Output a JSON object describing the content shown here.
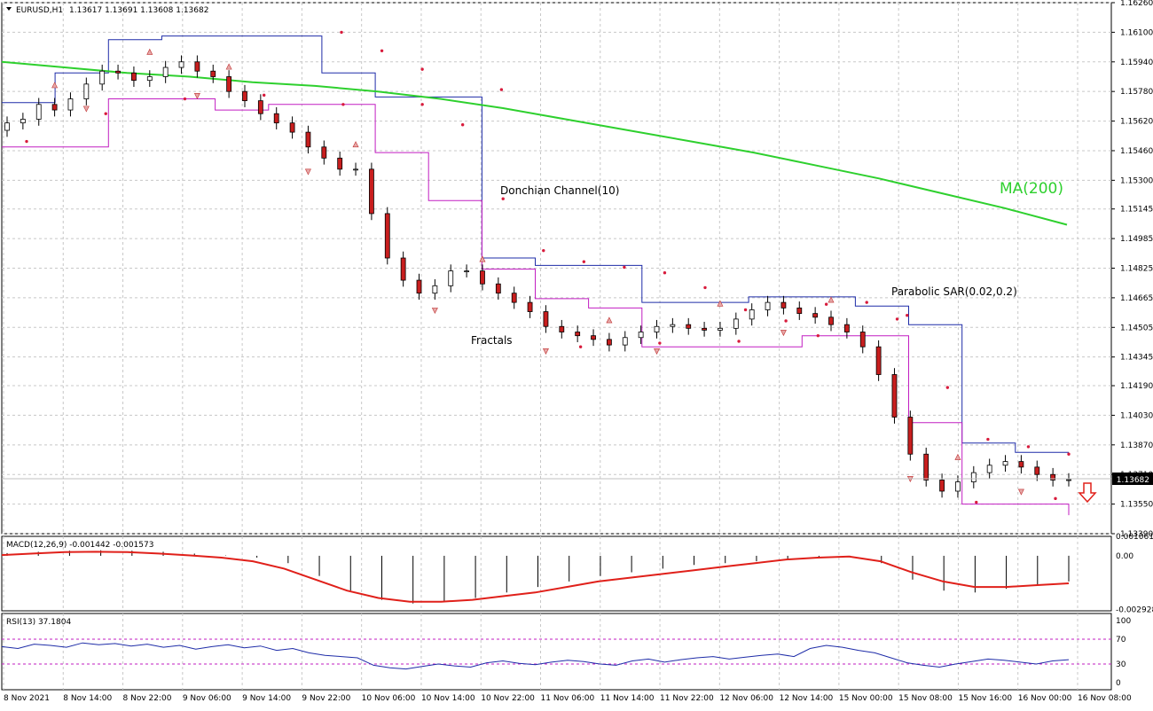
{
  "header": {
    "symbol_timeframe": "EURUSD,H1",
    "ohlc": "1.13617 1.13691 1.13608 1.13682"
  },
  "chart_data": [
    {
      "type": "candlestick",
      "panel": "price",
      "price_axis": {
        "ticks": [
          "1.16260",
          "1.16100",
          "1.15940",
          "1.15780",
          "1.15620",
          "1.15460",
          "1.15300",
          "1.15145",
          "1.14985",
          "1.14825",
          "1.14665",
          "1.14505",
          "1.14345",
          "1.14190",
          "1.14030",
          "1.13870",
          "1.13710",
          "1.13550",
          "1.13390"
        ],
        "range": [
          1.1339,
          1.1626
        ],
        "current_price_label": "1.13682",
        "current_price": 1.13682
      },
      "time_axis": {
        "labels": [
          "8 Nov 2021",
          "8 Nov 14:00",
          "8 Nov 22:00",
          "9 Nov 06:00",
          "9 Nov 14:00",
          "9 Nov 22:00",
          "10 Nov 06:00",
          "10 Nov 14:00",
          "10 Nov 22:00",
          "11 Nov 06:00",
          "11 Nov 14:00",
          "11 Nov 22:00",
          "12 Nov 06:00",
          "12 Nov 14:00",
          "15 Nov 00:00",
          "15 Nov 08:00",
          "15 Nov 16:00",
          "16 Nov 00:00",
          "16 Nov 08:00"
        ]
      },
      "annotations": {
        "donchian": "Donchian Channel(10)",
        "ma": "MA(200)",
        "sar": "Parabolic SAR(0.02,0.2)",
        "fractals": "Fractals"
      },
      "series": [
        {
          "key": "close",
          "values": [
            1.1561,
            1.1563,
            1.1571,
            1.1568,
            1.1574,
            1.1582,
            1.1589,
            1.1588,
            1.1584,
            1.1586,
            1.1591,
            1.1594,
            1.1589,
            1.1586,
            1.1578,
            1.1573,
            1.1566,
            1.1561,
            1.1556,
            1.1548,
            1.1542,
            1.1536,
            1.1536,
            1.1512,
            1.1488,
            1.1476,
            1.1469,
            1.1473,
            1.1481,
            1.1481,
            1.1474,
            1.1469,
            1.1464,
            1.1459,
            1.1451,
            1.1448,
            1.1446,
            1.1444,
            1.1441,
            1.1445,
            1.1448,
            1.1451,
            1.1452,
            1.145,
            1.1449,
            1.145,
            1.1455,
            1.146,
            1.1464,
            1.1461,
            1.1458,
            1.1456,
            1.1452,
            1.1448,
            1.144,
            1.1425,
            1.1402,
            1.1382,
            1.1368,
            1.1362,
            1.1367,
            1.1372,
            1.1376,
            1.1378,
            1.1375,
            1.1371,
            1.1368,
            1.13682
          ]
        },
        {
          "key": "ma200",
          "values": [
            1.1594,
            1.1591,
            1.1588,
            1.1586,
            1.1583,
            1.1581,
            1.1578,
            1.1574,
            1.1569,
            1.1563,
            1.1557,
            1.1551,
            1.1545,
            1.1538,
            1.1531,
            1.1523,
            1.1515,
            1.1506
          ]
        },
        {
          "key": "donchian_upper",
          "values": [
            1.1572,
            1.1588,
            1.1606,
            1.1608,
            1.1608,
            1.1608,
            1.1588,
            1.1575,
            1.1575,
            1.1488,
            1.1484,
            1.1484,
            1.1464,
            1.1464,
            1.1467,
            1.1467,
            1.1462,
            1.1452,
            1.1388,
            1.1383,
            1.1383
          ]
        },
        {
          "key": "donchian_lower",
          "values": [
            1.1548,
            1.1548,
            1.1574,
            1.1574,
            1.1568,
            1.1571,
            1.1571,
            1.1545,
            1.1519,
            1.1482,
            1.1466,
            1.1461,
            1.144,
            1.144,
            1.144,
            1.1446,
            1.1446,
            1.1399,
            1.1355,
            1.1355,
            1.1349
          ]
        },
        {
          "key": "sar_upper",
          "values": [
            1.161,
            1.16,
            1.159,
            1.156,
            1.152,
            1.1492,
            1.1486,
            1.1483,
            1.148,
            1.1472,
            1.146,
            1.1454,
            1.1463,
            1.1464,
            1.1457,
            1.1418,
            1.139,
            1.1386,
            1.1382
          ]
        },
        {
          "key": "sar_lower",
          "values": [
            1.1551,
            1.1566,
            1.1574,
            1.1576,
            1.1571,
            1.1571,
            1.1579,
            1.144,
            1.1442,
            1.1443,
            1.1446,
            1.1455,
            1.1356,
            1.1358
          ]
        }
      ]
    },
    {
      "type": "line+histogram",
      "panel": "macd",
      "label": "MACD(12,26,9) -0.001442 -0.001573",
      "ticks": [
        "0.001061",
        "0.00",
        "-0.002928"
      ],
      "range": [
        -0.003,
        0.00106
      ],
      "series": [
        {
          "key": "histogram",
          "values": [
            0.00015,
            0.00022,
            0.00028,
            0.0003,
            0.00028,
            0.00022,
            0.00012,
            2e-05,
            -0.0001,
            -0.0004,
            -0.0011,
            -0.0019,
            -0.0024,
            -0.0026,
            -0.0025,
            -0.0023,
            -0.002,
            -0.0017,
            -0.0014,
            -0.0011,
            -0.0009,
            -0.0007,
            -0.0005,
            -0.0004,
            -0.0003,
            -0.0002,
            -0.0001,
            -5e-05,
            -0.0004,
            -0.0013,
            -0.0019,
            -0.002,
            -0.0018,
            -0.0016,
            -0.0014
          ]
        },
        {
          "key": "signal",
          "values": [
            4e-05,
            0.00012,
            0.0002,
            0.00022,
            0.0002,
            0.00012,
            2e-05,
            -0.0001,
            -0.0003,
            -0.0007,
            -0.0013,
            -0.0019,
            -0.0023,
            -0.0025,
            -0.0025,
            -0.0024,
            -0.0022,
            -0.002,
            -0.0017,
            -0.0014,
            -0.0012,
            -0.001,
            -0.0008,
            -0.0006,
            -0.0004,
            -0.0002,
            -0.0001,
            -4e-05,
            -0.0003,
            -0.0009,
            -0.0014,
            -0.0017,
            -0.0017,
            -0.0016,
            -0.0015
          ]
        }
      ]
    },
    {
      "type": "line",
      "panel": "rsi",
      "label": "RSI(13) 37.1804",
      "ticks": [
        "100",
        "70",
        "30",
        "0"
      ],
      "range": [
        0,
        100
      ],
      "levels": [
        70,
        30
      ],
      "series": [
        {
          "key": "rsi",
          "values": [
            58,
            55,
            62,
            60,
            57,
            64,
            61,
            63,
            59,
            62,
            57,
            60,
            54,
            58,
            61,
            56,
            59,
            52,
            55,
            48,
            44,
            42,
            40,
            28,
            24,
            22,
            26,
            30,
            27,
            25,
            32,
            35,
            31,
            29,
            33,
            36,
            34,
            30,
            28,
            35,
            38,
            33,
            37,
            40,
            42,
            38,
            41,
            44,
            46,
            42,
            55,
            60,
            57,
            52,
            48,
            40,
            32,
            28,
            25,
            30,
            34,
            38,
            36,
            33,
            30,
            35,
            37
          ]
        }
      ]
    }
  ]
}
